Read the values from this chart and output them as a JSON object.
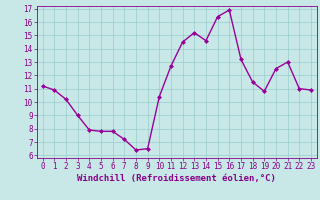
{
  "x": [
    0,
    1,
    2,
    3,
    4,
    5,
    6,
    7,
    8,
    9,
    10,
    11,
    12,
    13,
    14,
    15,
    16,
    17,
    18,
    19,
    20,
    21,
    22,
    23
  ],
  "y": [
    11.2,
    10.9,
    10.2,
    9.0,
    7.9,
    7.8,
    7.8,
    7.2,
    6.4,
    6.5,
    10.4,
    12.7,
    14.5,
    15.2,
    14.6,
    16.4,
    16.9,
    13.2,
    11.5,
    10.8,
    12.5,
    13.0,
    11.0,
    10.9
  ],
  "line_color": "#990099",
  "marker": "D",
  "marker_size": 2.0,
  "bg_color": "#c8e8e8",
  "grid_color": "#99cccc",
  "xlabel": "Windchill (Refroidissement éolien,°C)",
  "ylim": [
    6,
    17
  ],
  "xlim": [
    -0.5,
    23.5
  ],
  "yticks": [
    6,
    7,
    8,
    9,
    10,
    11,
    12,
    13,
    14,
    15,
    16,
    17
  ],
  "xticks": [
    0,
    1,
    2,
    3,
    4,
    5,
    6,
    7,
    8,
    9,
    10,
    11,
    12,
    13,
    14,
    15,
    16,
    17,
    18,
    19,
    20,
    21,
    22,
    23
  ],
  "tick_color": "#880088",
  "label_fontsize": 6.5,
  "tick_fontsize": 5.5,
  "line_width": 1.0
}
